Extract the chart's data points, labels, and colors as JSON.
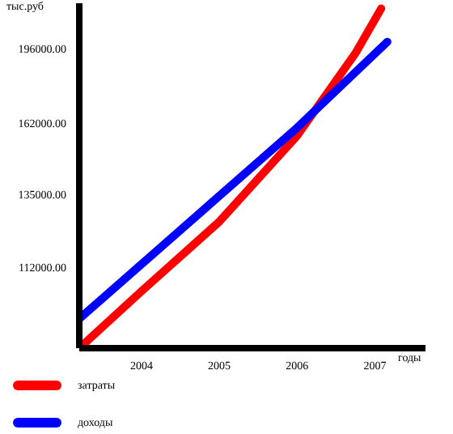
{
  "chart_data": {
    "type": "line",
    "ylabel": "тыс.руб",
    "xlabel": "годы",
    "log": true,
    "xlim": [
      2003.2,
      2007.65
    ],
    "xticks": [
      2004,
      2005,
      2006,
      2007
    ],
    "ylim": [
      91000,
      220000
    ],
    "yticks": [
      {
        "value": 112000,
        "label": "112000.00"
      },
      {
        "value": 135000,
        "label": "135000.00"
      },
      {
        "value": 162000,
        "label": "162000.00"
      },
      {
        "value": 196000,
        "label": "196000.00"
      }
    ],
    "grid": false,
    "legend": "bottom left",
    "marker": "none",
    "line_style": "solid",
    "series": [
      {
        "name": "затраты",
        "color": "#ff0000",
        "x": [
          2003.2,
          2004,
          2005,
          2006,
          2006.75,
          2007.08
        ],
        "values": [
          91000,
          105300,
          125800,
          156700,
          193600,
          217000
        ]
      },
      {
        "name": "доходы",
        "color": "#0000ff",
        "x": [
          2003.2,
          2006,
          2007.16
        ],
        "values": [
          98100,
          160000,
          199300
        ]
      }
    ]
  }
}
